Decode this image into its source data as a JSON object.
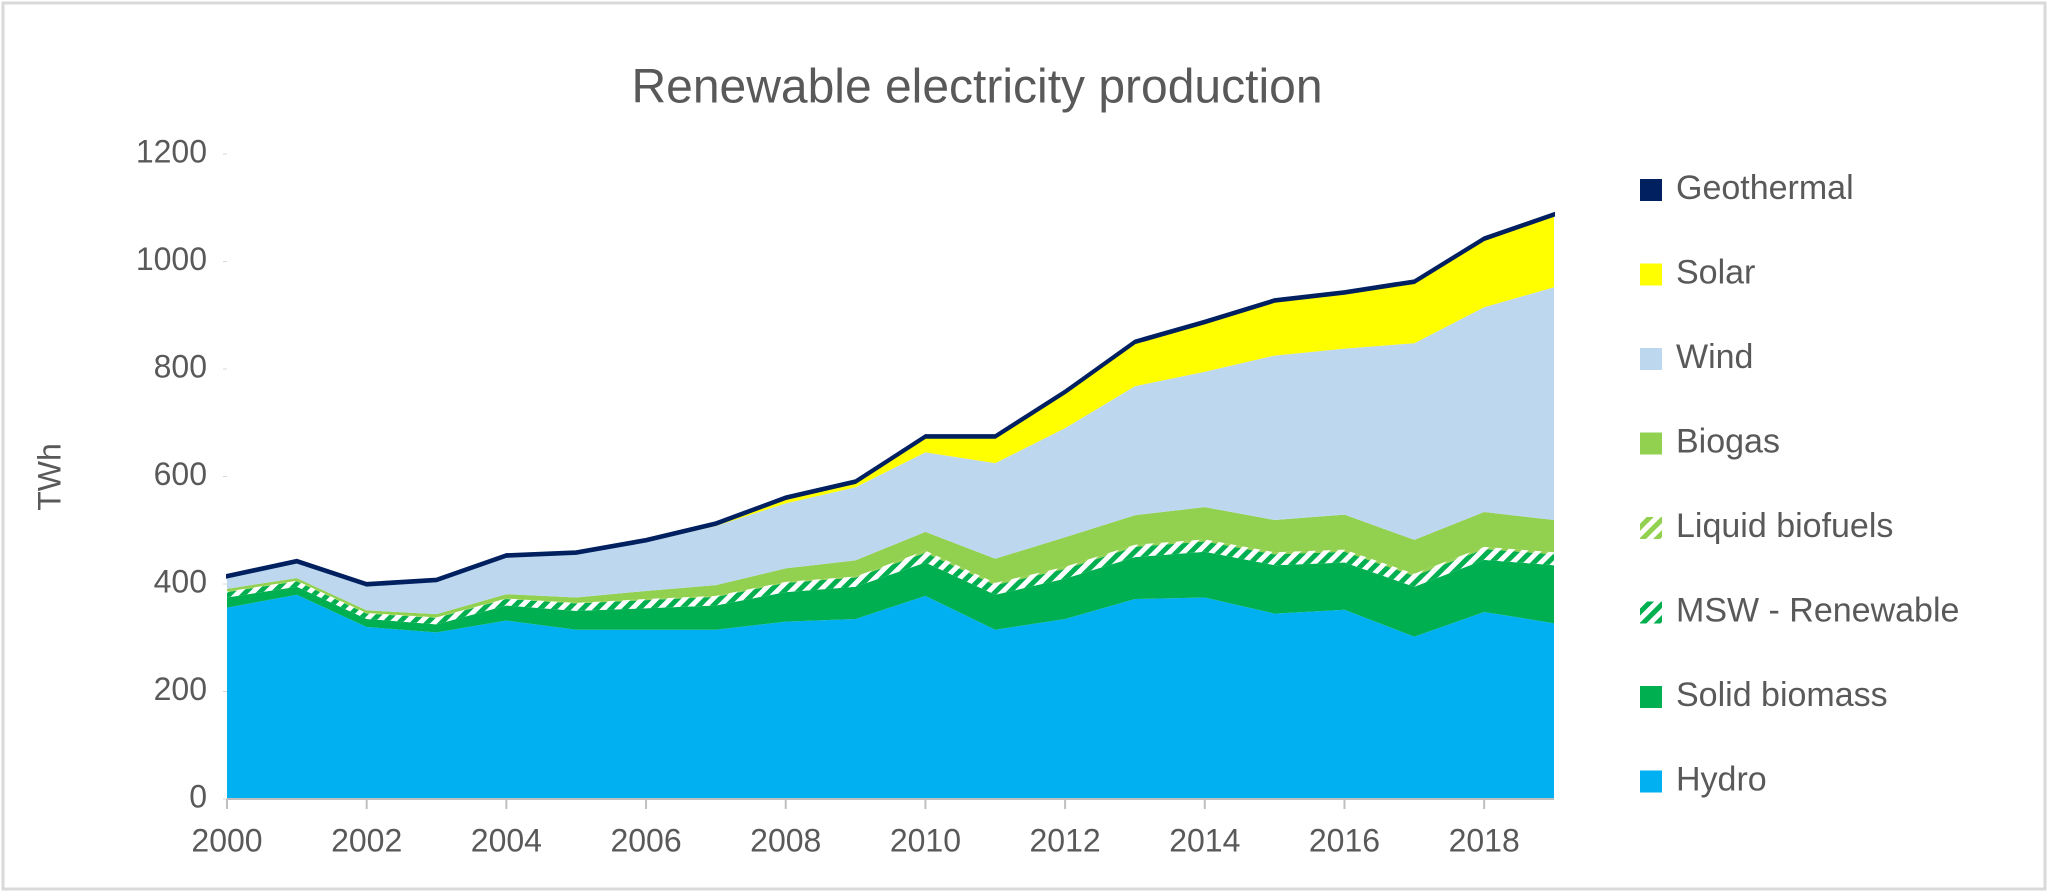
{
  "chart_data": {
    "type": "stacked_area",
    "title": "Renewable electricity production",
    "y_label": "TWh",
    "x": [
      2000,
      2001,
      2002,
      2003,
      2004,
      2005,
      2006,
      2007,
      2008,
      2009,
      2010,
      2011,
      2012,
      2013,
      2014,
      2015,
      2016,
      2017,
      2018,
      2019
    ],
    "xlim": [
      2000,
      2019
    ],
    "xticks": [
      2000,
      2002,
      2004,
      2006,
      2008,
      2010,
      2012,
      2014,
      2016,
      2018
    ],
    "ylim": [
      0,
      1200
    ],
    "yticks": [
      0,
      200,
      400,
      600,
      800,
      1000,
      1200
    ],
    "legend": "right",
    "series": [
      {
        "name": "Hydro",
        "color": "#00b0f0",
        "values": [
          356,
          380,
          320,
          310,
          332,
          315,
          315,
          315,
          330,
          335,
          378,
          315,
          335,
          372,
          375,
          345,
          352,
          302,
          348,
          327
        ]
      },
      {
        "name": "Solid biomass",
        "color": "#00b050",
        "values": [
          19,
          15,
          15,
          15,
          28,
          35,
          40,
          45,
          55,
          60,
          62,
          65,
          75,
          78,
          85,
          90,
          88,
          93,
          97,
          108
        ]
      },
      {
        "name": "MSW - Renewable",
        "color": "#00b050",
        "hatch": true,
        "values": [
          10,
          10,
          10,
          12,
          12,
          14,
          15,
          16,
          17,
          17,
          18,
          18,
          18,
          19,
          19,
          20,
          20,
          20,
          20,
          20
        ]
      },
      {
        "name": "Liquid biofuels",
        "color": "#92d050",
        "hatch": true,
        "values": [
          1,
          1,
          1,
          1,
          1,
          1,
          2,
          2,
          2,
          2,
          4,
          4,
          4,
          4,
          4,
          4,
          4,
          4,
          4,
          4
        ]
      },
      {
        "name": "Biogas",
        "color": "#92d050",
        "values": [
          5,
          5,
          5,
          6,
          8,
          10,
          15,
          20,
          25,
          30,
          35,
          45,
          55,
          55,
          60,
          60,
          65,
          63,
          65,
          60
        ]
      },
      {
        "name": "Wind",
        "color": "#bdd7ee",
        "values": [
          21,
          29,
          46,
          61,
          69,
          80,
          91,
          110,
          121,
          136,
          148,
          178,
          203,
          240,
          252,
          306,
          309,
          366,
          381,
          433
        ]
      },
      {
        "name": "Solar",
        "color": "#ffff00",
        "values": [
          0,
          0,
          0,
          0,
          0.5,
          1,
          1,
          2,
          8,
          8,
          27,
          47,
          65,
          80,
          90,
          100,
          102,
          112,
          125,
          133
        ]
      },
      {
        "name": "Geothermal",
        "color": "#002060",
        "values": [
          5,
          5,
          5,
          5,
          5,
          5,
          5,
          5,
          5,
          5,
          5,
          5,
          5,
          5,
          5,
          5,
          5,
          5,
          5,
          5
        ]
      }
    ]
  }
}
